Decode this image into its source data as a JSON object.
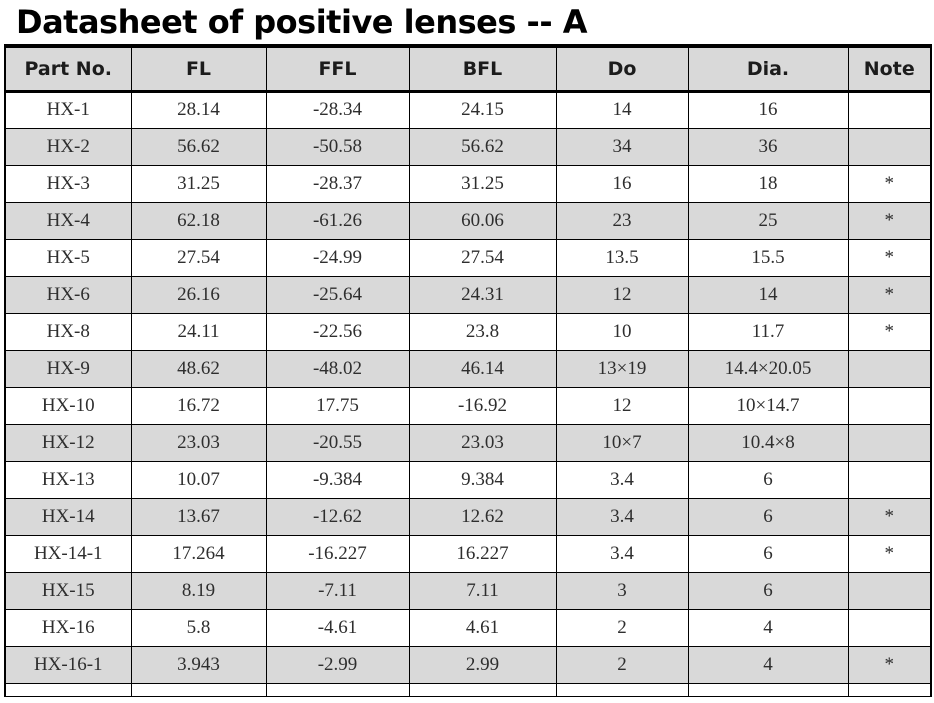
{
  "page": {
    "title": "Datasheet of positive lenses -- A"
  },
  "colors": {
    "header_bg": "#d9d9d9",
    "alt_row_bg": "#d9d9d9",
    "border_color": "#000000",
    "title_color": "#000000",
    "data_text_color": "#2e2e2e"
  },
  "table": {
    "headers": [
      "Part No.",
      "FL",
      "FFL",
      "BFL",
      "Do",
      "Dia.",
      "Note"
    ],
    "rows": [
      [
        "HX-1",
        "28.14",
        "-28.34",
        "24.15",
        "14",
        "16",
        ""
      ],
      [
        "HX-2",
        "56.62",
        "-50.58",
        "56.62",
        "34",
        "36",
        ""
      ],
      [
        "HX-3",
        "31.25",
        "-28.37",
        "31.25",
        "16",
        "18",
        "*"
      ],
      [
        "HX-4",
        "62.18",
        "-61.26",
        "60.06",
        "23",
        "25",
        "*"
      ],
      [
        "HX-5",
        "27.54",
        "-24.99",
        "27.54",
        "13.5",
        "15.5",
        "*"
      ],
      [
        "HX-6",
        "26.16",
        "-25.64",
        "24.31",
        "12",
        "14",
        "*"
      ],
      [
        "HX-8",
        "24.11",
        "-22.56",
        "23.8",
        "10",
        "11.7",
        "*"
      ],
      [
        "HX-9",
        "48.62",
        "-48.02",
        "46.14",
        "13×19",
        "14.4×20.05",
        ""
      ],
      [
        "HX-10",
        "16.72",
        "17.75",
        "-16.92",
        "12",
        "10×14.7",
        ""
      ],
      [
        "HX-12",
        "23.03",
        "-20.55",
        "23.03",
        "10×7",
        "10.4×8",
        ""
      ],
      [
        "HX-13",
        "10.07",
        "-9.384",
        "9.384",
        "3.4",
        "6",
        ""
      ],
      [
        "HX-14",
        "13.67",
        "-12.62",
        "12.62",
        "3.4",
        "6",
        "*"
      ],
      [
        "HX-14-1",
        "17.264",
        "-16.227",
        "16.227",
        "3.4",
        "6",
        "*"
      ],
      [
        "HX-15",
        "8.19",
        "-7.11",
        "7.11",
        "3",
        "6",
        ""
      ],
      [
        "HX-16",
        "5.8",
        "-4.61",
        "4.61",
        "2",
        "4",
        ""
      ],
      [
        "HX-16-1",
        "3.943",
        "-2.99",
        "2.99",
        "2",
        "4",
        "*"
      ]
    ]
  }
}
